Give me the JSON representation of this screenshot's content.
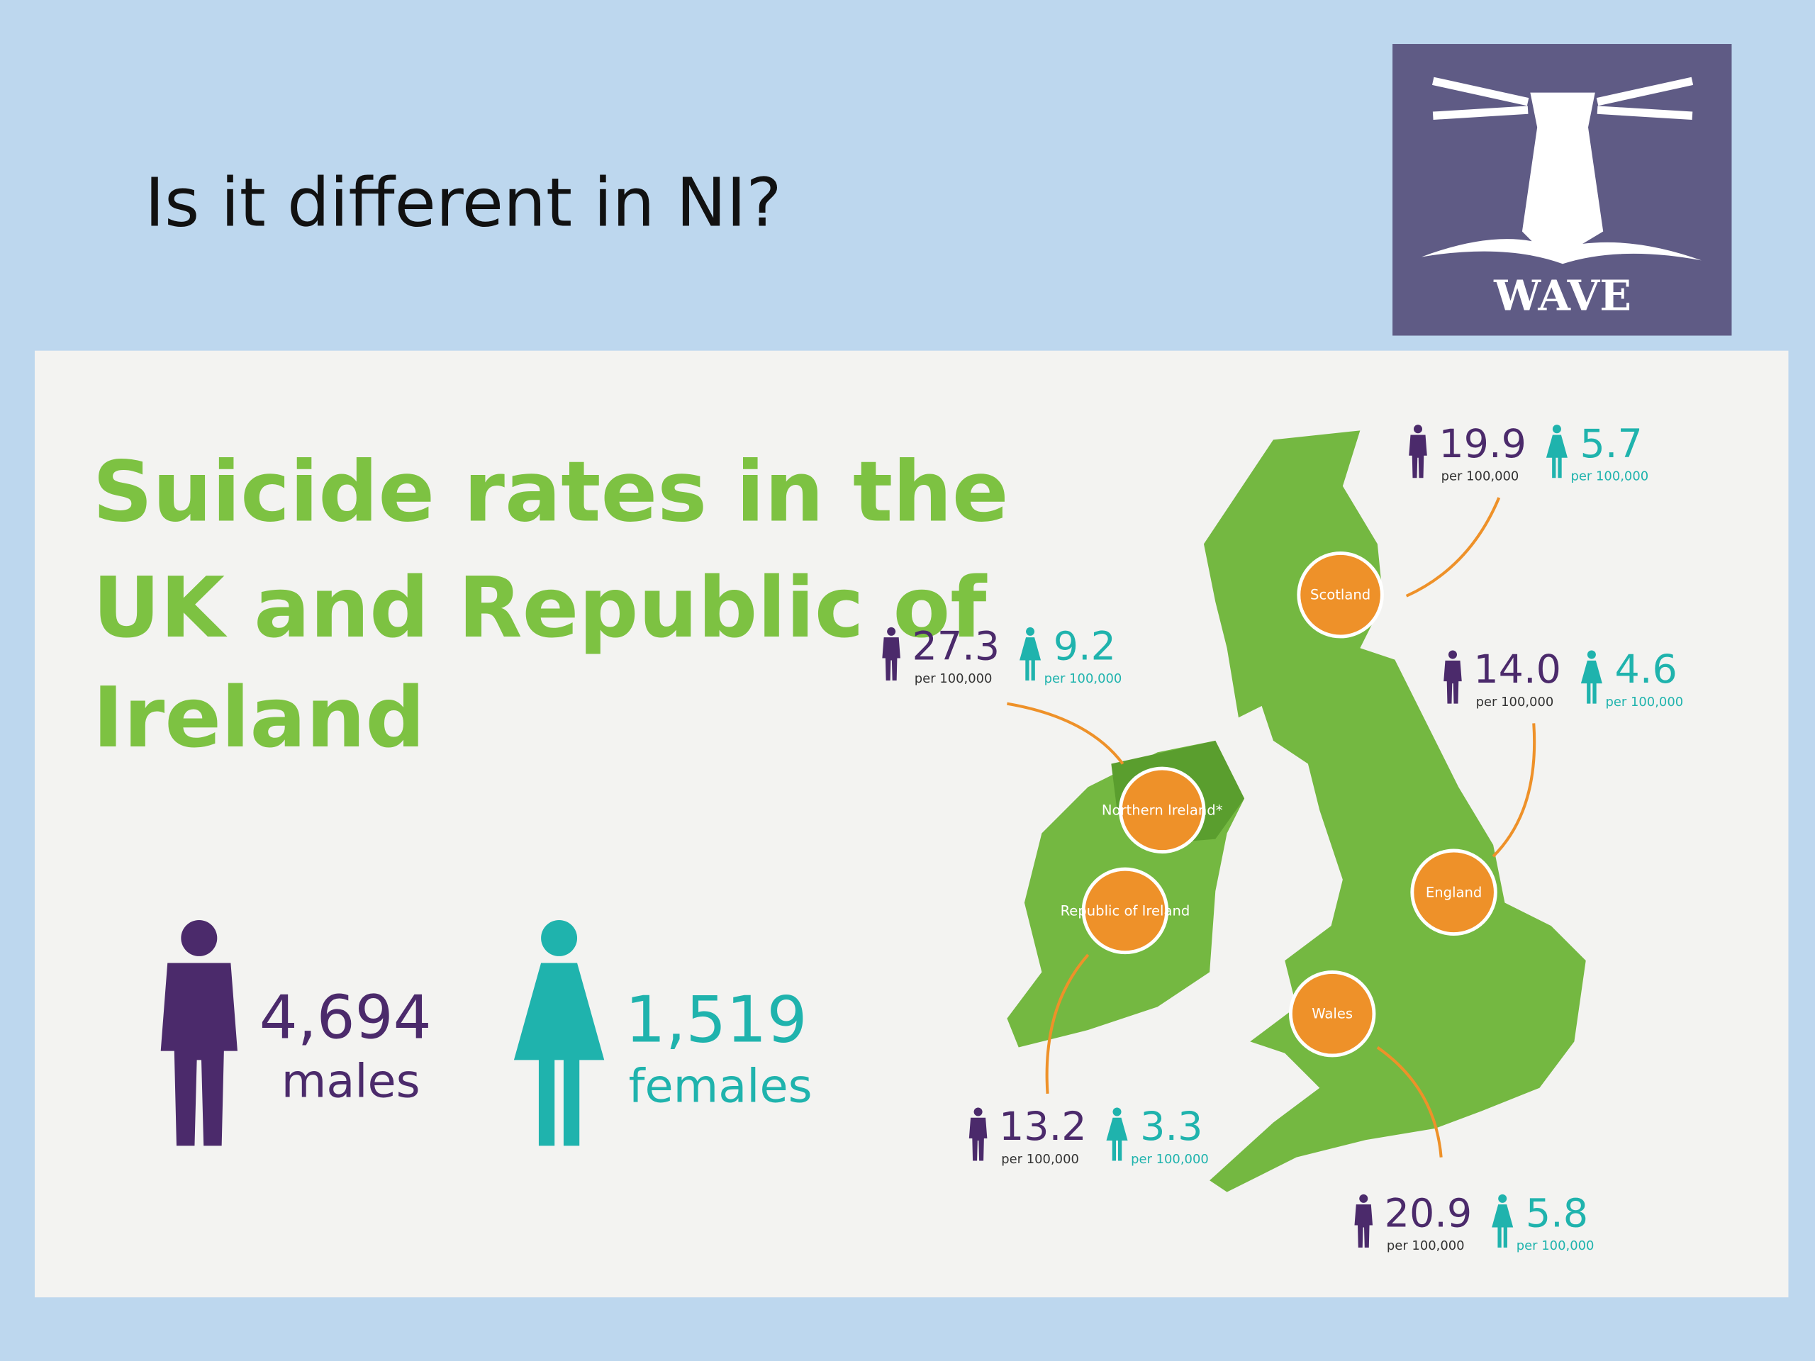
{
  "slide": {
    "title": "Is it different in NI?",
    "logo_text": "WAVE"
  },
  "infographic": {
    "title_lines": [
      "Suicide rates in the",
      "UK and Republic of",
      "Ireland"
    ],
    "totals": {
      "males_count": "4,694",
      "males_label": "males",
      "females_count": "1,519",
      "females_label": "females"
    },
    "regions": [
      {
        "name": "Scotland",
        "male": "19.9",
        "male_unit": "per 100,000",
        "female": "5.7",
        "female_unit": "per 100,000"
      },
      {
        "name": "Northern Ireland*",
        "male": "27.3",
        "male_unit": "per 100,000",
        "female": "9.2",
        "female_unit": "per 100,000"
      },
      {
        "name": "Republic of Ireland",
        "male": "13.2",
        "male_unit": "per 100,000",
        "female": "3.3",
        "female_unit": "per 100,000"
      },
      {
        "name": "England",
        "male": "14.0",
        "male_unit": "per 100,000",
        "female": "4.6",
        "female_unit": "per 100,000"
      },
      {
        "name": "Wales",
        "male": "20.9",
        "male_unit": "per 100,000",
        "female": "5.8",
        "female_unit": "per 100,000"
      }
    ]
  }
}
